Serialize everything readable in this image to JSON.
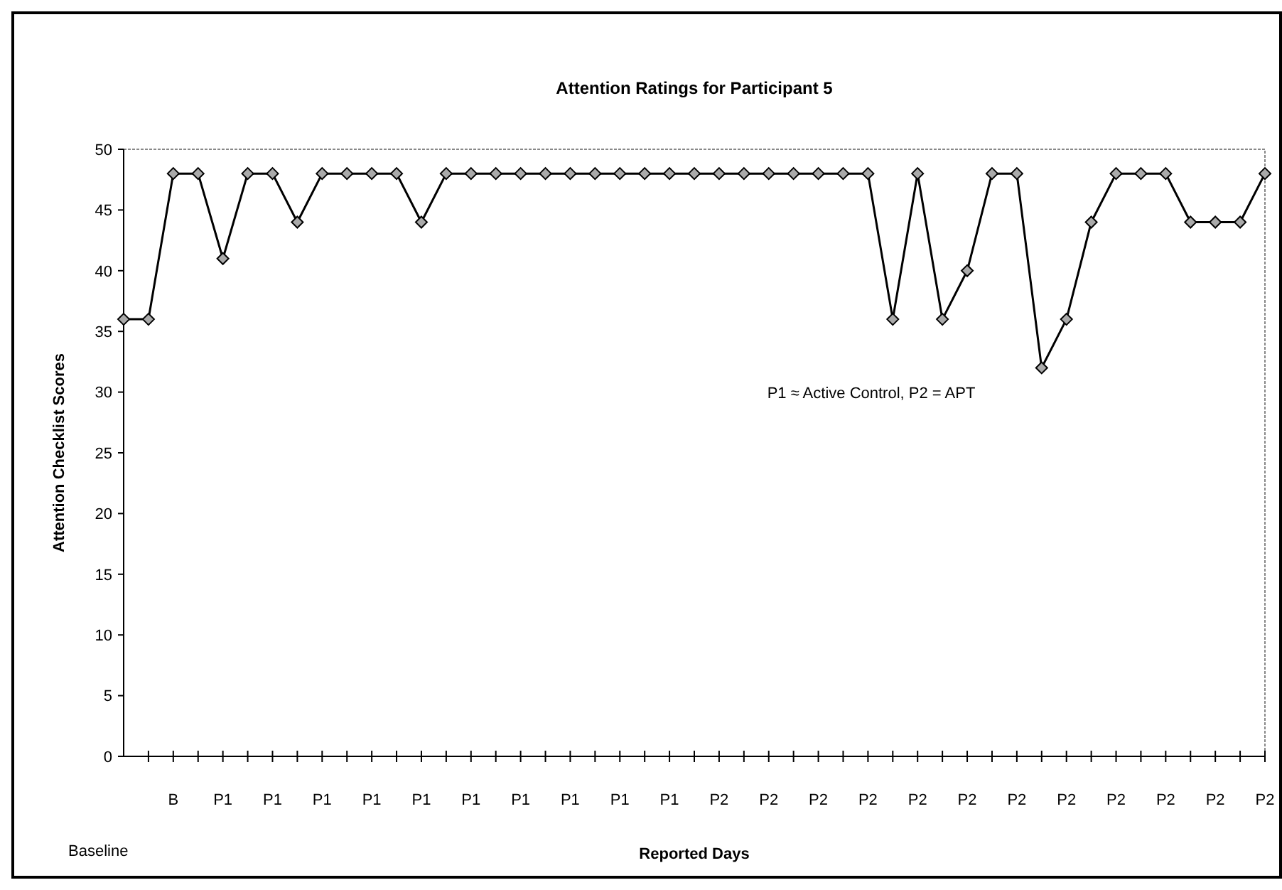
{
  "chart_data": {
    "type": "line",
    "title": "Attention Ratings for Participant 5",
    "xlabel": "Reported Days",
    "ylabel": "Attention Checklist Scores",
    "categories": [
      null,
      null,
      "B",
      null,
      "P1",
      null,
      "P1",
      null,
      "P1",
      null,
      "P1",
      null,
      "P1",
      null,
      "P1",
      null,
      "P1",
      null,
      "P1",
      null,
      "P1",
      null,
      "P1",
      null,
      "P2",
      null,
      "P2",
      null,
      "P2",
      null,
      "P2",
      null,
      "P2",
      null,
      "P2",
      null,
      "P2",
      null,
      "P2",
      null,
      "P2",
      null,
      "P2",
      null,
      "P2",
      null,
      "P2"
    ],
    "series": [
      {
        "color": "#000000",
        "values": [
          36,
          36,
          48,
          48,
          41,
          48,
          48,
          44,
          48,
          48,
          48,
          48,
          44,
          48,
          48,
          48,
          48,
          48,
          48,
          48,
          48,
          48,
          48,
          48,
          48,
          48,
          48,
          48,
          48,
          48,
          48,
          36,
          48,
          36,
          40,
          48,
          48,
          32,
          36,
          44,
          48,
          48,
          48,
          44,
          44,
          44,
          48
        ]
      }
    ],
    "ylim": [
      0,
      50
    ],
    "yticks": [
      0,
      5,
      10,
      15,
      20,
      25,
      30,
      35,
      40,
      45,
      50
    ],
    "grid": false,
    "marker": "diamond",
    "line_style": "solid",
    "annotations": [
      "P1 ≈ Active Control, P2 = APT",
      "Baseline"
    ]
  }
}
